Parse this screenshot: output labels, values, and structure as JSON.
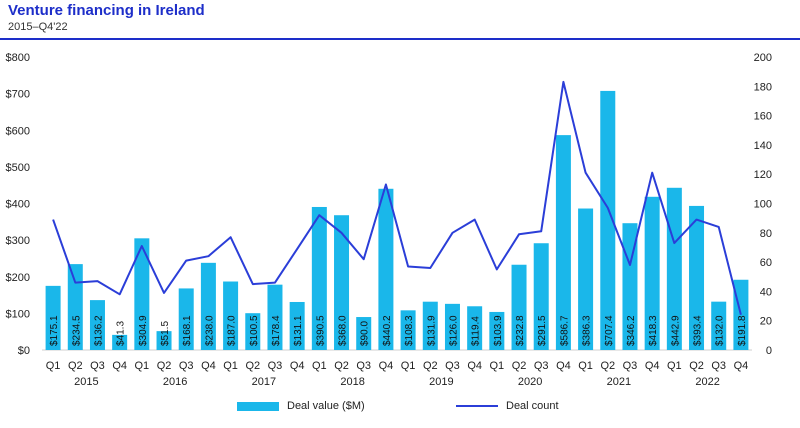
{
  "colors": {
    "title": "#1d2ec9",
    "bar": "#1ab7ea",
    "line": "#2b3ed8",
    "text": "#222222"
  },
  "title": "Venture financing in Ireland",
  "subtitle": "2015–Q4'22",
  "legend": {
    "bar_label": "Deal value ($M)",
    "line_label": "Deal count"
  },
  "chart_data": {
    "type": "bar",
    "categories": [
      "Q1",
      "Q2",
      "Q3",
      "Q4",
      "Q1",
      "Q2",
      "Q3",
      "Q4",
      "Q1",
      "Q2",
      "Q3",
      "Q4",
      "Q1",
      "Q2",
      "Q3",
      "Q4",
      "Q1",
      "Q2",
      "Q3",
      "Q4",
      "Q1",
      "Q2",
      "Q3",
      "Q4",
      "Q1",
      "Q2",
      "Q3",
      "Q4",
      "Q1",
      "Q2",
      "Q3",
      "Q4"
    ],
    "years": [
      "2015",
      "2016",
      "2017",
      "2018",
      "2019",
      "2020",
      "2021",
      "2022"
    ],
    "series": [
      {
        "name": "Deal value ($M)",
        "type": "bar",
        "axis": "left",
        "values": [
          175.1,
          234.5,
          136.2,
          41.3,
          304.9,
          51.5,
          168.1,
          238.0,
          187.0,
          100.5,
          178.4,
          131.1,
          390.5,
          368.0,
          90.0,
          440.2,
          108.3,
          131.9,
          126.0,
          119.4,
          103.9,
          232.8,
          291.5,
          586.7,
          386.3,
          707.4,
          346.2,
          418.3,
          442.9,
          393.4,
          132.0,
          191.8
        ]
      },
      {
        "name": "Deal count",
        "type": "line",
        "axis": "right",
        "values": [
          89,
          46,
          47,
          38,
          71,
          39,
          61,
          64,
          77,
          45,
          46,
          69,
          92,
          80,
          62,
          113,
          57,
          56,
          80,
          89,
          55,
          79,
          81,
          183,
          121,
          97,
          58,
          121,
          73,
          89,
          84,
          24
        ]
      }
    ],
    "bar_labels": [
      "$175.1",
      "$234.5",
      "$136.2",
      "$41.3",
      "$304.9",
      "$51.5",
      "$168.1",
      "$238.0",
      "$187.0",
      "$100.5",
      "$178.4",
      "$131.1",
      "$390.5",
      "$368.0",
      "$90.0",
      "$440.2",
      "$108.3",
      "$131.9",
      "$126.0",
      "$119.4",
      "$103.9",
      "$232.8",
      "$291.5",
      "$586.7",
      "$386.3",
      "$707.4",
      "$346.2",
      "$418.3",
      "$442.9",
      "$393.4",
      "$132.0",
      "$191.8"
    ],
    "ylim_left": [
      0,
      800
    ],
    "ylim_right": [
      0,
      200
    ],
    "left_ticks": [
      "$0",
      "$100",
      "$200",
      "$300",
      "$400",
      "$500",
      "$600",
      "$700",
      "$800"
    ],
    "right_ticks": [
      "0",
      "20",
      "40",
      "60",
      "80",
      "100",
      "120",
      "140",
      "160",
      "180",
      "200"
    ],
    "grid": false,
    "legend_position": "bottom"
  }
}
